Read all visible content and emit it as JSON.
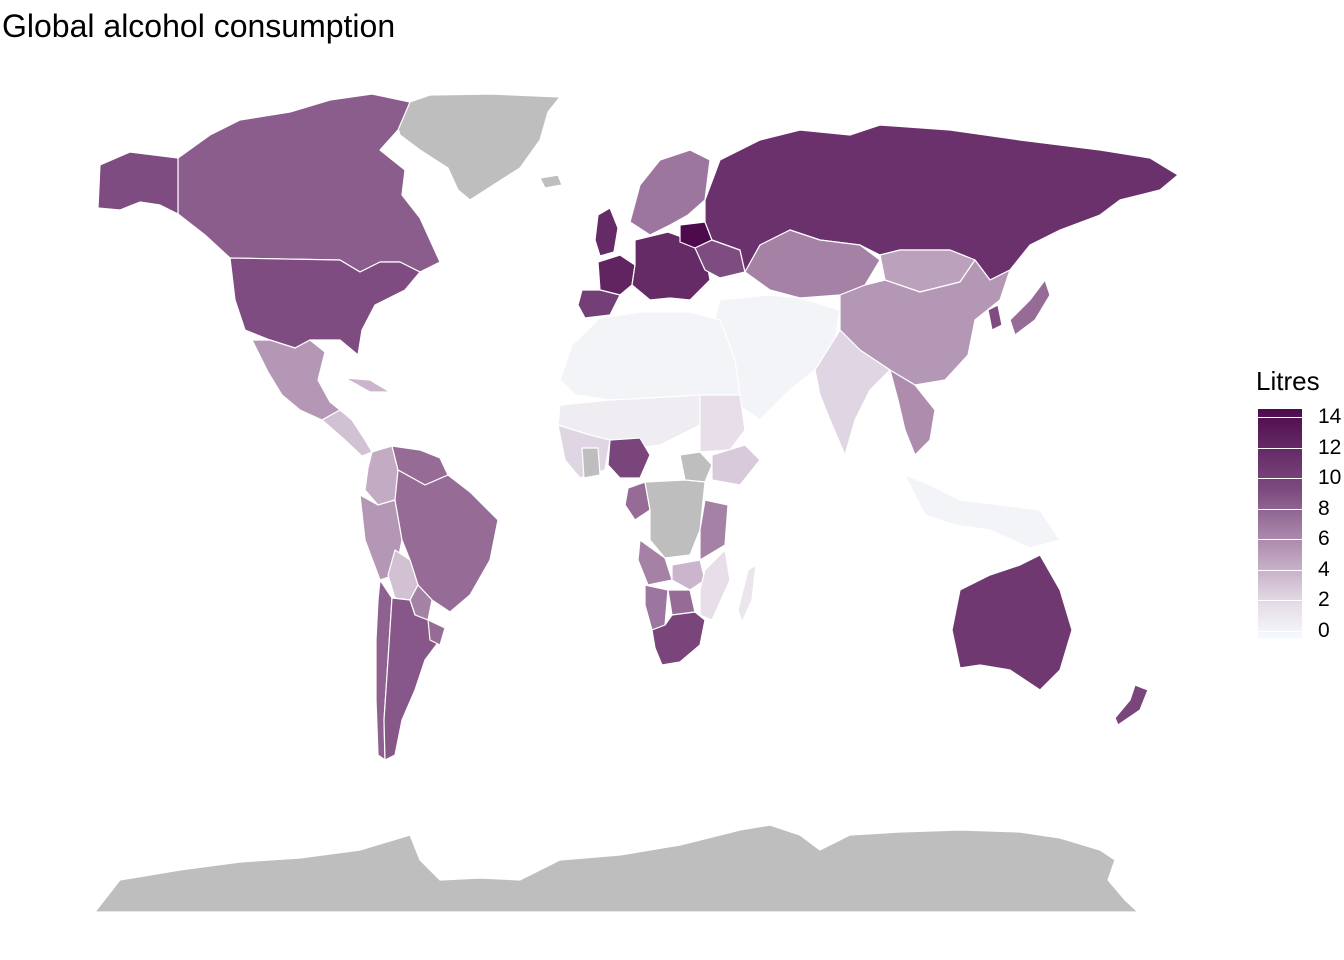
{
  "title": "Global alcohol consumption",
  "legend": {
    "title": "Litres",
    "ticks": [
      "14",
      "12",
      "10",
      "8",
      "6",
      "4",
      "2",
      "0"
    ],
    "scale_min": 0,
    "scale_max": 14,
    "color_low": "#f7fbfc",
    "color_high": "#4d0a4d",
    "missing_color": "#bebebe"
  },
  "regions": [
    {
      "name": "Greenland",
      "value": null
    },
    {
      "name": "Canada",
      "value": 8.2
    },
    {
      "name": "United States",
      "value": 9.0
    },
    {
      "name": "Mexico",
      "value": 5.5
    },
    {
      "name": "Central America",
      "value": 3.5
    },
    {
      "name": "Cuba",
      "value": 4.0
    },
    {
      "name": "Venezuela",
      "value": 7.5
    },
    {
      "name": "Colombia",
      "value": 4.5
    },
    {
      "name": "Peru",
      "value": 5.5
    },
    {
      "name": "Brazil",
      "value": 7.5
    },
    {
      "name": "Bolivia",
      "value": 3.5
    },
    {
      "name": "Paraguay",
      "value": 6.5
    },
    {
      "name": "Argentina",
      "value": 8.5
    },
    {
      "name": "Chile",
      "value": 8.0
    },
    {
      "name": "Uruguay",
      "value": 7.5
    },
    {
      "name": "Iceland",
      "value": null
    },
    {
      "name": "United Kingdom",
      "value": 11.5
    },
    {
      "name": "Scandinavia",
      "value": 7.0
    },
    {
      "name": "France",
      "value": 12.0
    },
    {
      "name": "Spain",
      "value": 10.0
    },
    {
      "name": "Central Europe",
      "value": 11.5
    },
    {
      "name": "Belarus",
      "value": 14.5
    },
    {
      "name": "Ukraine",
      "value": 9.0
    },
    {
      "name": "Russia",
      "value": 11.0
    },
    {
      "name": "Kazakhstan",
      "value": 6.5
    },
    {
      "name": "Mongolia",
      "value": 5.0
    },
    {
      "name": "China",
      "value": 5.5
    },
    {
      "name": "Japan",
      "value": 7.5
    },
    {
      "name": "Korea",
      "value": 9.0
    },
    {
      "name": "Middle East",
      "value": 0.5
    },
    {
      "name": "India",
      "value": 2.5
    },
    {
      "name": "Southeast Asia",
      "value": 6.0
    },
    {
      "name": "Indonesia",
      "value": 0.5
    },
    {
      "name": "Australia",
      "value": 10.5
    },
    {
      "name": "New Zealand",
      "value": 9.5
    },
    {
      "name": "North Africa",
      "value": 0.5
    },
    {
      "name": "Sahel",
      "value": 1.0
    },
    {
      "name": "West Africa",
      "value": 2.5
    },
    {
      "name": "Nigeria",
      "value": 9.5
    },
    {
      "name": "Ghana",
      "value": null
    },
    {
      "name": "Sudan",
      "value": 2.0
    },
    {
      "name": "South Sudan",
      "value": null
    },
    {
      "name": "Ethiopia",
      "value": 3.0
    },
    {
      "name": "DR Congo",
      "value": null
    },
    {
      "name": "Congo",
      "value": 7.5
    },
    {
      "name": "Tanzania",
      "value": 6.5
    },
    {
      "name": "Angola",
      "value": 6.5
    },
    {
      "name": "Zambia",
      "value": 4.0
    },
    {
      "name": "Mozambique",
      "value": 2.0
    },
    {
      "name": "Namibia",
      "value": 7.0
    },
    {
      "name": "Botswana",
      "value": 7.5
    },
    {
      "name": "South Africa",
      "value": 9.5
    },
    {
      "name": "Madagascar",
      "value": 1.5
    },
    {
      "name": "Antarctica",
      "value": null
    }
  ]
}
